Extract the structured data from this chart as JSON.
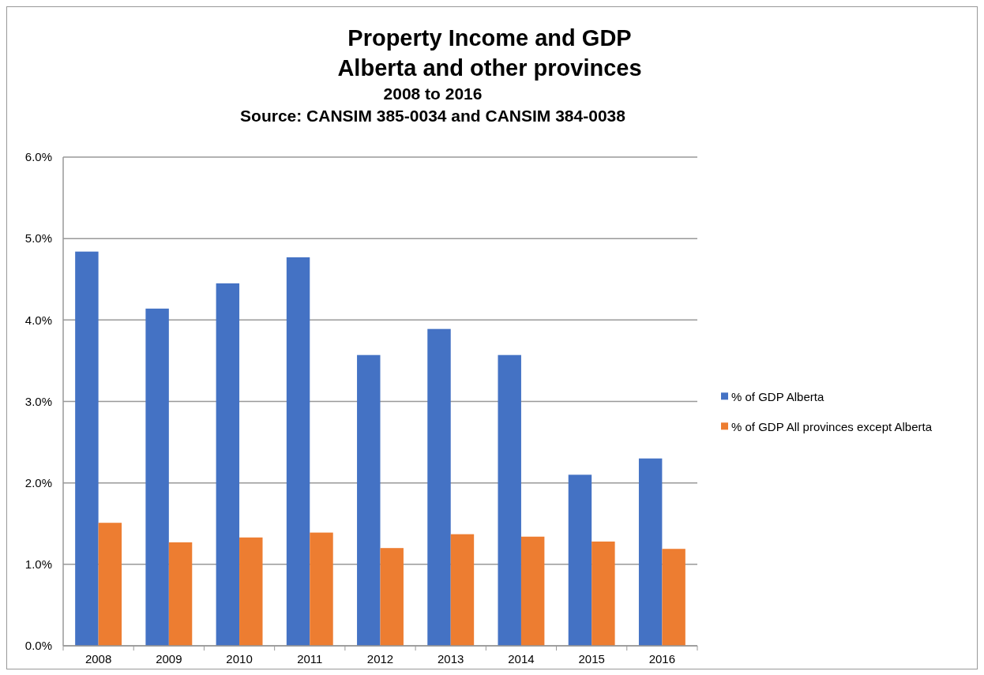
{
  "chart_data": {
    "type": "bar",
    "title": "Property Income and GDP\nAlberta and other provinces",
    "subtitle": "2008 to 2016",
    "annotations": [
      "Source: CANSIM 385-0034 and CANSIM 384-0038"
    ],
    "categories": [
      "2008",
      "2009",
      "2010",
      "2011",
      "2012",
      "2013",
      "2014",
      "2015",
      "2016"
    ],
    "series": [
      {
        "name": "% of GDP Alberta",
        "color": "#4472c4",
        "values": [
          4.84,
          4.14,
          4.45,
          4.77,
          3.57,
          3.89,
          3.57,
          2.1,
          2.3
        ]
      },
      {
        "name": "% of GDP All provinces except Alberta",
        "color": "#ed7d31",
        "values": [
          1.51,
          1.27,
          1.33,
          1.39,
          1.2,
          1.37,
          1.34,
          1.28,
          1.19
        ]
      }
    ],
    "ylim": [
      0,
      6
    ],
    "yticks": [
      {
        "value": 0,
        "label": "0.0%"
      },
      {
        "value": 1,
        "label": "1.0%"
      },
      {
        "value": 2,
        "label": "2.0%"
      },
      {
        "value": 3,
        "label": "3.0%"
      },
      {
        "value": 4,
        "label": "4.0%"
      },
      {
        "value": 5,
        "label": "5.0%"
      },
      {
        "value": 6,
        "label": "6.0%"
      }
    ],
    "grid": "y",
    "legend": "right"
  }
}
